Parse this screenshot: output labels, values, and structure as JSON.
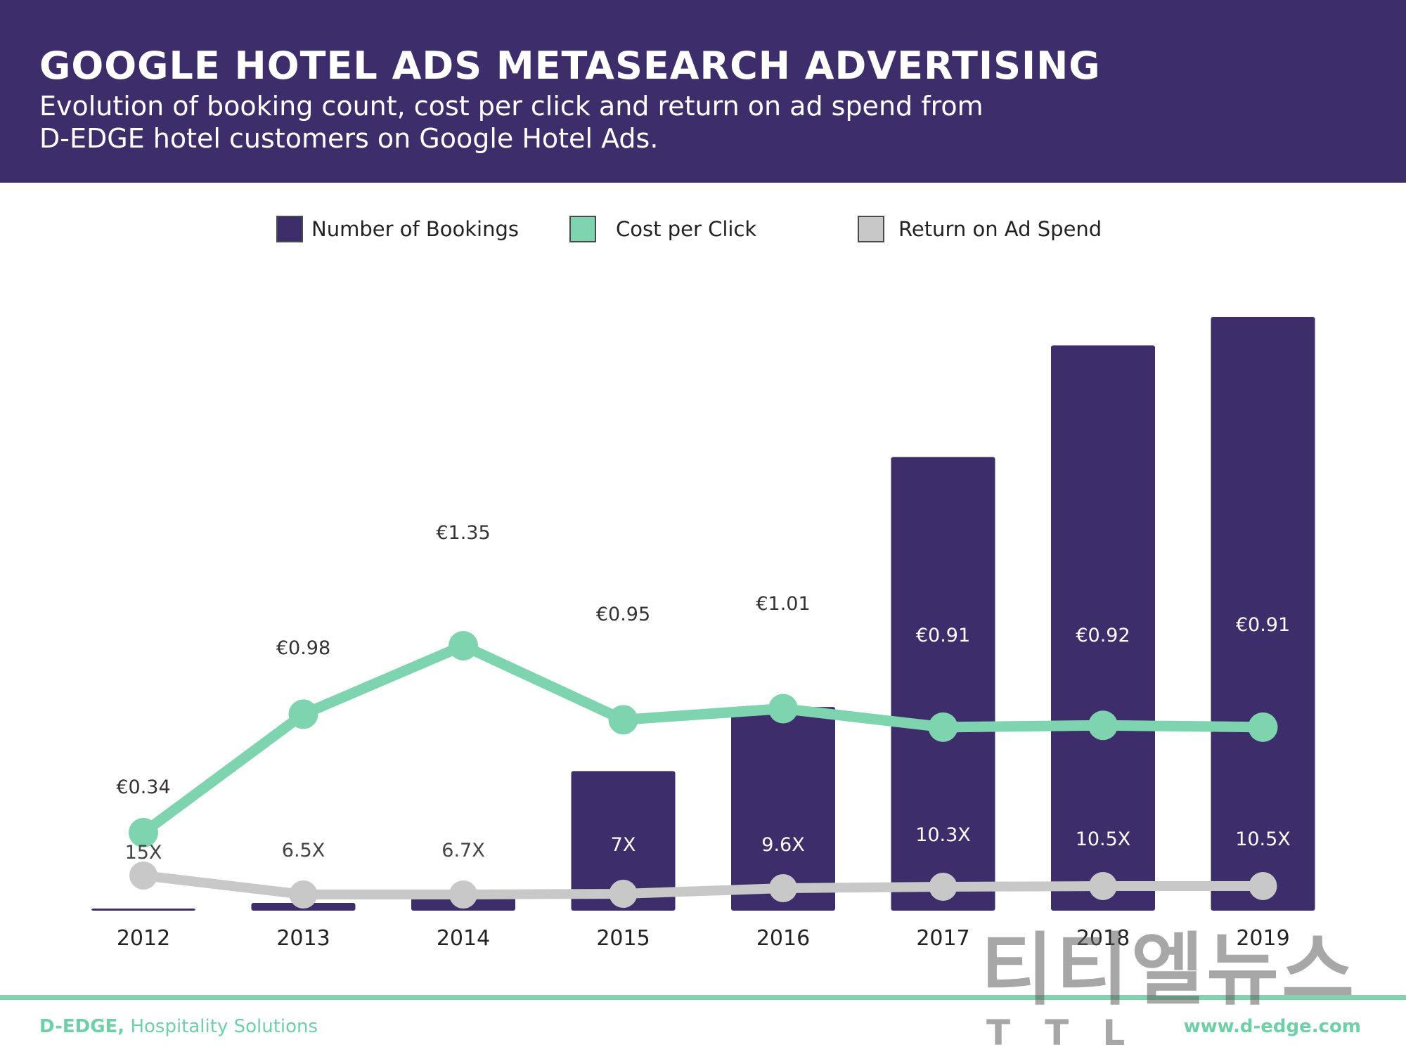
{
  "header": {
    "title": "GOOGLE HOTEL ADS METASEARCH ADVERTISING",
    "subtitle_line1": "Evolution of booking count, cost per click and return on ad spend from",
    "subtitle_line2": "D-EDGE hotel customers on Google Hotel Ads."
  },
  "colors": {
    "header_bg": "#3d2e6b",
    "bookings": "#3d2e6b",
    "cpc": "#7fd4b0",
    "roas": "#c8c8c8",
    "footer_accent": "#6fcfa7"
  },
  "chart_data": {
    "type": "bar",
    "title": "",
    "xlabel": "",
    "ylabel": "",
    "categories": [
      "2012",
      "2013",
      "2014",
      "2015",
      "2016",
      "2017",
      "2018",
      "2019"
    ],
    "legend_position": "top-center",
    "grid": false,
    "series": [
      {
        "name": "Number of Bookings",
        "type": "bar",
        "color": "#3d2e6b",
        "values": [
          0.3,
          1.3,
          3.1,
          23.5,
          34.3,
          76.4,
          95.2,
          100
        ],
        "ylim": [
          0,
          100
        ]
      },
      {
        "name": "Cost per Click",
        "type": "line",
        "color": "#7fd4b0",
        "values": [
          0.34,
          0.98,
          1.35,
          0.95,
          1.01,
          0.91,
          0.92,
          0.91
        ],
        "labels": [
          "€0.34",
          "€0.98",
          "€1.35",
          "€0.95",
          "€1.01",
          "€0.91",
          "€0.92",
          "€0.91"
        ]
      },
      {
        "name": "Return on Ad Spend",
        "type": "line",
        "color": "#c8c8c8",
        "values": [
          15,
          6.5,
          6.7,
          7,
          9.6,
          10.3,
          10.5,
          10.5
        ],
        "labels": [
          "15X",
          "6.5X",
          "6.7X",
          "7X",
          "9.6X",
          "10.3X",
          "10.5X",
          "10.5X"
        ]
      }
    ]
  },
  "footer": {
    "brand_bold": "D-EDGE,",
    "brand_rest": " Hospitality Solutions",
    "url": "www.d-edge.com"
  },
  "watermark": {
    "text": "티티엘뉴스",
    "sub": "TTL"
  }
}
